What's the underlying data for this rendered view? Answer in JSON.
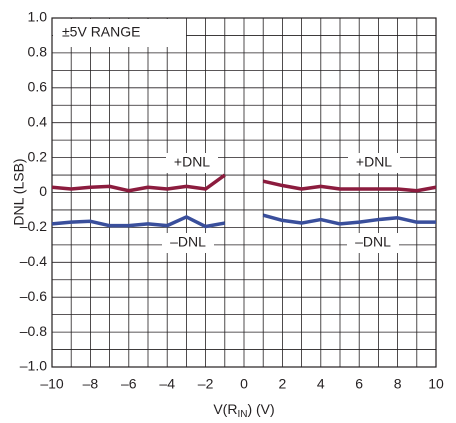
{
  "chart_data": {
    "type": "line",
    "x_label": [
      "V(R",
      "IN",
      ") (V)"
    ],
    "y_label": "DNL (LSB)",
    "annotations": [
      "±5V RANGE",
      "+DNL",
      "+DNL",
      "–DNL",
      "–DNL"
    ],
    "x": [
      -10,
      -9,
      -8,
      -7,
      -6,
      -5,
      -4,
      -3,
      -2,
      -1,
      0,
      1,
      2,
      3,
      4,
      5,
      6,
      7,
      8,
      9,
      10
    ],
    "series": [
      {
        "name": "+DNL",
        "color": "#8c1c3e",
        "values": [
          0.03,
          0.02,
          0.03,
          0.035,
          0.01,
          0.03,
          0.02,
          0.035,
          0.02,
          0.1,
          null,
          0.065,
          0.04,
          0.02,
          0.035,
          0.02,
          0.02,
          0.02,
          0.02,
          0.01,
          0.03
        ]
      },
      {
        "name": "–DNL",
        "color": "#3a4f9c",
        "values": [
          -0.18,
          -0.17,
          -0.165,
          -0.19,
          -0.19,
          -0.18,
          -0.19,
          -0.14,
          -0.195,
          -0.175,
          null,
          -0.13,
          -0.16,
          -0.175,
          -0.155,
          -0.18,
          -0.17,
          -0.155,
          -0.145,
          -0.17,
          -0.17
        ]
      }
    ],
    "xlim": [
      -10,
      10
    ],
    "ylim": [
      -1,
      1
    ],
    "xticks": [
      {
        "value": -10,
        "label": "–10"
      },
      {
        "value": -8,
        "label": "–8"
      },
      {
        "value": -6,
        "label": "–6"
      },
      {
        "value": -4,
        "label": "–4"
      },
      {
        "value": -2,
        "label": "–2"
      },
      0,
      2,
      4,
      6,
      8,
      10
    ],
    "yticks": [
      {
        "value": -1,
        "label": "–1.0"
      },
      {
        "value": -0.8,
        "label": "–0.8"
      },
      {
        "value": -0.6,
        "label": "–0.6"
      },
      {
        "value": -0.4,
        "label": "–0.4"
      },
      {
        "value": -0.2,
        "label": "–0.2"
      },
      0,
      0.2,
      0.4,
      0.6,
      0.8,
      {
        "value": 1,
        "label": "1.0"
      }
    ],
    "xminor_ticks": [
      -9,
      -7,
      -5,
      -3,
      -1,
      1,
      3,
      5,
      7,
      9
    ],
    "yminor_ticks": [
      -0.9,
      -0.7,
      -0.5,
      -0.3,
      -0.1,
      0.1,
      0.3,
      0.5,
      0.7,
      0.9
    ],
    "grid": true
  }
}
